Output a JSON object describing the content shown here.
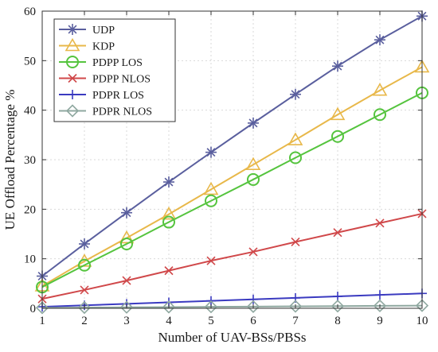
{
  "chart_data": {
    "type": "line",
    "title": "",
    "xlabel": "Number of UAV-BSs/PBSs",
    "ylabel": "UE Offload Percentage %",
    "x": [
      1,
      2,
      3,
      4,
      5,
      6,
      7,
      8,
      9,
      10
    ],
    "xlim": [
      1,
      10
    ],
    "ylim": [
      0,
      60
    ],
    "xticks": [
      1,
      2,
      3,
      4,
      5,
      6,
      7,
      8,
      9,
      10
    ],
    "yticks": [
      0,
      10,
      20,
      30,
      40,
      50,
      60
    ],
    "grid": true,
    "legend_position": "top-left",
    "series": [
      {
        "name": "UDP",
        "color": "#5a5f9e",
        "marker": "asterisk",
        "values": [
          6.5,
          13.0,
          19.3,
          25.5,
          31.5,
          37.4,
          43.2,
          48.9,
          54.2,
          59.0
        ]
      },
      {
        "name": "KDP",
        "color": "#e8b84a",
        "marker": "triangle",
        "values": [
          4.5,
          9.5,
          14.2,
          19.0,
          24.0,
          29.0,
          34.0,
          39.1,
          44.0,
          48.7
        ]
      },
      {
        "name": "PDPP LOS",
        "color": "#55c43e",
        "marker": "circle",
        "values": [
          4.3,
          8.7,
          13.0,
          17.4,
          21.7,
          26.0,
          30.4,
          34.7,
          39.1,
          43.5
        ]
      },
      {
        "name": "PDPP NLOS",
        "color": "#d0484a",
        "marker": "cross",
        "values": [
          1.9,
          3.7,
          5.6,
          7.6,
          9.6,
          11.4,
          13.4,
          15.3,
          17.2,
          19.1
        ]
      },
      {
        "name": "PDPR LOS",
        "color": "#3a3ac0",
        "marker": "plus",
        "values": [
          0.3,
          0.6,
          0.9,
          1.2,
          1.5,
          1.8,
          2.1,
          2.4,
          2.7,
          3.0
        ]
      },
      {
        "name": "PDPR NLOS",
        "color": "#8fa8a0",
        "marker": "diamond",
        "values": [
          0.1,
          0.15,
          0.2,
          0.25,
          0.3,
          0.35,
          0.4,
          0.45,
          0.5,
          0.55
        ]
      }
    ]
  }
}
